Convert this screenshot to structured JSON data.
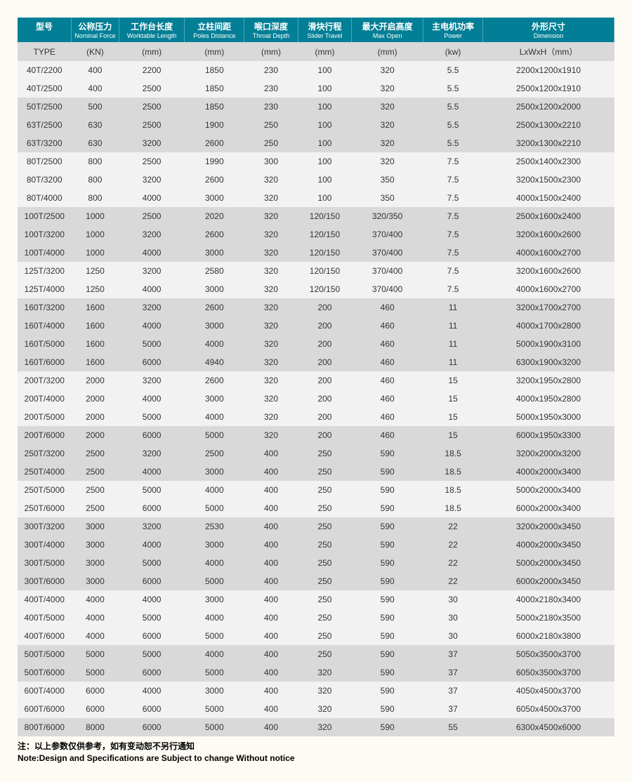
{
  "table": {
    "header_bg": "#027f96",
    "header_text_color": "#ffffff",
    "unit_row_bg": "#d9d9d9",
    "row_light_bg": "#f2f2f2",
    "row_dark_bg": "#d9d9d9",
    "text_color": "#333333",
    "columns": [
      {
        "cn": "型号",
        "en": "",
        "unit": "TYPE"
      },
      {
        "cn": "公称压力",
        "en": "Nominal Force",
        "unit": "(KN)"
      },
      {
        "cn": "工作台长度",
        "en": "Worktable Length",
        "unit": "(mm)"
      },
      {
        "cn": "立柱间距",
        "en": "Poles Distance",
        "unit": "(mm)"
      },
      {
        "cn": "喉口深度",
        "en": "Throat Depth",
        "unit": "(mm)"
      },
      {
        "cn": "滑块行程",
        "en": "Slider Travel",
        "unit": "(mm)"
      },
      {
        "cn": "最大开启高度",
        "en": "Max Open",
        "unit": "(mm)"
      },
      {
        "cn": "主电机功率",
        "en": "Power",
        "unit": "(kw)"
      },
      {
        "cn": "外形尺寸",
        "en": "Dimension",
        "unit": "LxWxH（mm）"
      }
    ],
    "rows": [
      [
        "40T/2200",
        "400",
        "2200",
        "1850",
        "230",
        "100",
        "320",
        "5.5",
        "2200x1200x1910"
      ],
      [
        "40T/2500",
        "400",
        "2500",
        "1850",
        "230",
        "100",
        "320",
        "5.5",
        "2500x1200x1910"
      ],
      [
        "50T/2500",
        "500",
        "2500",
        "1850",
        "230",
        "100",
        "320",
        "5.5",
        "2500x1200x2000"
      ],
      [
        "63T/2500",
        "630",
        "2500",
        "1900",
        "250",
        "100",
        "320",
        "5.5",
        "2500x1300x2210"
      ],
      [
        "63T/3200",
        "630",
        "3200",
        "2600",
        "250",
        "100",
        "320",
        "5.5",
        "3200x1300x2210"
      ],
      [
        "80T/2500",
        "800",
        "2500",
        "1990",
        "300",
        "100",
        "320",
        "7.5",
        "2500x1400x2300"
      ],
      [
        "80T/3200",
        "800",
        "3200",
        "2600",
        "320",
        "100",
        "350",
        "7.5",
        "3200x1500x2300"
      ],
      [
        "80T/4000",
        "800",
        "4000",
        "3000",
        "320",
        "100",
        "350",
        "7.5",
        "4000x1500x2400"
      ],
      [
        "100T/2500",
        "1000",
        "2500",
        "2020",
        "320",
        "120/150",
        "320/350",
        "7.5",
        "2500x1600x2400"
      ],
      [
        "100T/3200",
        "1000",
        "3200",
        "2600",
        "320",
        "120/150",
        "370/400",
        "7.5",
        "3200x1600x2600"
      ],
      [
        "100T/4000",
        "1000",
        "4000",
        "3000",
        "320",
        "120/150",
        "370/400",
        "7.5",
        "4000x1600x2700"
      ],
      [
        "125T/3200",
        "1250",
        "3200",
        "2580",
        "320",
        "120/150",
        "370/400",
        "7.5",
        "3200x1600x2600"
      ],
      [
        "125T/4000",
        "1250",
        "4000",
        "3000",
        "320",
        "120/150",
        "370/400",
        "7.5",
        "4000x1600x2700"
      ],
      [
        "160T/3200",
        "1600",
        "3200",
        "2600",
        "320",
        "200",
        "460",
        "11",
        "3200x1700x2700"
      ],
      [
        "160T/4000",
        "1600",
        "4000",
        "3000",
        "320",
        "200",
        "460",
        "11",
        "4000x1700x2800"
      ],
      [
        "160T/5000",
        "1600",
        "5000",
        "4000",
        "320",
        "200",
        "460",
        "11",
        "5000x1900x3100"
      ],
      [
        "160T/6000",
        "1600",
        "6000",
        "4940",
        "320",
        "200",
        "460",
        "11",
        "6300x1900x3200"
      ],
      [
        "200T/3200",
        "2000",
        "3200",
        "2600",
        "320",
        "200",
        "460",
        "15",
        "3200x1950x2800"
      ],
      [
        "200T/4000",
        "2000",
        "4000",
        "3000",
        "320",
        "200",
        "460",
        "15",
        "4000x1950x2800"
      ],
      [
        "200T/5000",
        "2000",
        "5000",
        "4000",
        "320",
        "200",
        "460",
        "15",
        "5000x1950x3000"
      ],
      [
        "200T/6000",
        "2000",
        "6000",
        "5000",
        "320",
        "200",
        "460",
        "15",
        "6000x1950x3300"
      ],
      [
        "250T/3200",
        "2500",
        "3200",
        "2500",
        "400",
        "250",
        "590",
        "18.5",
        "3200x2000x3200"
      ],
      [
        "250T/4000",
        "2500",
        "4000",
        "3000",
        "400",
        "250",
        "590",
        "18.5",
        "4000x2000x3400"
      ],
      [
        "250T/5000",
        "2500",
        "5000",
        "4000",
        "400",
        "250",
        "590",
        "18.5",
        "5000x2000x3400"
      ],
      [
        "250T/6000",
        "2500",
        "6000",
        "5000",
        "400",
        "250",
        "590",
        "18.5",
        "6000x2000x3400"
      ],
      [
        "300T/3200",
        "3000",
        "3200",
        "2530",
        "400",
        "250",
        "590",
        "22",
        "3200x2000x3450"
      ],
      [
        "300T/4000",
        "3000",
        "4000",
        "3000",
        "400",
        "250",
        "590",
        "22",
        "4000x2000x3450"
      ],
      [
        "300T/5000",
        "3000",
        "5000",
        "4000",
        "400",
        "250",
        "590",
        "22",
        "5000x2000x3450"
      ],
      [
        "300T/6000",
        "3000",
        "6000",
        "5000",
        "400",
        "250",
        "590",
        "22",
        "6000x2000x3450"
      ],
      [
        "400T/4000",
        "4000",
        "4000",
        "3000",
        "400",
        "250",
        "590",
        "30",
        "4000x2180x3400"
      ],
      [
        "400T/5000",
        "4000",
        "5000",
        "4000",
        "400",
        "250",
        "590",
        "30",
        "5000x2180x3500"
      ],
      [
        "400T/6000",
        "4000",
        "6000",
        "5000",
        "400",
        "250",
        "590",
        "30",
        "6000x2180x3800"
      ],
      [
        "500T/5000",
        "5000",
        "5000",
        "4000",
        "400",
        "250",
        "590",
        "37",
        "5050x3500x3700"
      ],
      [
        "500T/6000",
        "5000",
        "6000",
        "5000",
        "400",
        "320",
        "590",
        "37",
        "6050x3500x3700"
      ],
      [
        "600T/4000",
        "6000",
        "4000",
        "3000",
        "400",
        "320",
        "590",
        "37",
        "4050x4500x3700"
      ],
      [
        "600T/6000",
        "6000",
        "6000",
        "5000",
        "400",
        "320",
        "590",
        "37",
        "6050x4500x3700"
      ],
      [
        "800T/6000",
        "8000",
        "6000",
        "5000",
        "400",
        "320",
        "590",
        "55",
        "6300x4500x6000"
      ]
    ],
    "shading": [
      1,
      1,
      2,
      2,
      2,
      1,
      1,
      1,
      2,
      2,
      2,
      1,
      1,
      2,
      2,
      2,
      2,
      1,
      1,
      1,
      2,
      2,
      2,
      1,
      1,
      2,
      2,
      2,
      2,
      1,
      1,
      1,
      2,
      2,
      1,
      1,
      2
    ]
  },
  "footnote": {
    "line1": "注：以上参数仅供参考，如有变动恕不另行通知",
    "line2": "Note:Design and Specifications are Subject to change Without notice"
  }
}
